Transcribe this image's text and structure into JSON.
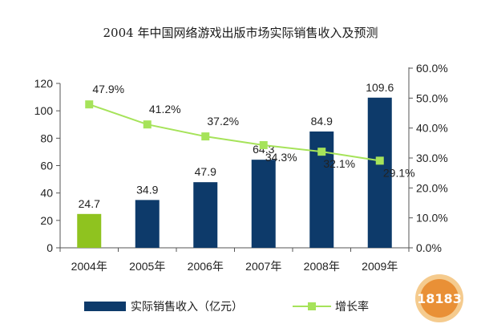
{
  "chart_data": {
    "type": "bar",
    "title": "2004 年中国网络游戏出版市场实际销售收入及预测",
    "categories": [
      "2004年",
      "2005年",
      "2006年",
      "2007年",
      "2008年",
      "2009年"
    ],
    "series": [
      {
        "name": "实际销售收入（亿元）",
        "type": "bar",
        "axis": "left",
        "values": [
          24.7,
          34.9,
          47.9,
          64.3,
          84.9,
          109.6
        ],
        "labels": [
          "24.7",
          "34.9",
          "47.9",
          "64.3",
          "84.9",
          "109.6"
        ],
        "colors": [
          "#8fc31f",
          "#0d3a6a",
          "#0d3a6a",
          "#0d3a6a",
          "#0d3a6a",
          "#0d3a6a"
        ]
      },
      {
        "name": "增长率",
        "type": "line",
        "axis": "right",
        "values": [
          0.479,
          0.412,
          0.372,
          0.343,
          0.321,
          0.291
        ],
        "labels": [
          "47.9%",
          "41.2%",
          "37.2%",
          "34.3%",
          "32.1%",
          "29.1%"
        ],
        "color": "#a6e35a"
      }
    ],
    "y_left": {
      "range": [
        0,
        120
      ],
      "ticks": [
        "0",
        "20",
        "40",
        "60",
        "80",
        "100",
        "120"
      ]
    },
    "y_right": {
      "range": [
        0,
        0.6
      ],
      "ticks": [
        "0.0%",
        "10.0%",
        "20.0%",
        "30.0%",
        "40.0%",
        "50.0%",
        "60.0%"
      ]
    },
    "grid": false,
    "legend_position": "bottom"
  },
  "watermark": {
    "text": "18183"
  }
}
